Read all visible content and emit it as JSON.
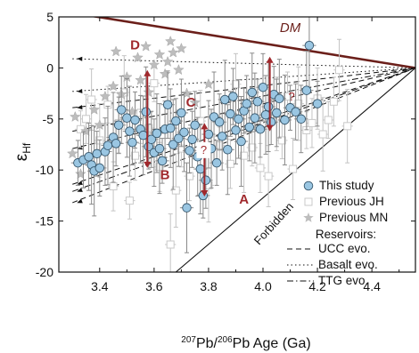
{
  "chart_data": {
    "type": "scatter",
    "title": "",
    "xlabel_iso_207": "207",
    "xlabel_mid": "Pb/",
    "xlabel_iso_206": "206",
    "xlabel_tail": "Pb Age (Ga)",
    "ylabel_main": "ε",
    "ylabel_sub": "Hf",
    "xlim": [
      3.25,
      4.56
    ],
    "ylim": [
      -20,
      5
    ],
    "x_ticks": [
      3.4,
      3.6,
      3.8,
      4.0,
      4.2,
      4.4
    ],
    "x_tick_labels": [
      "3.4",
      "3.6",
      "3.8",
      "4.0",
      "4.2",
      "4.4"
    ],
    "y_ticks": [
      5,
      0,
      -5,
      -10,
      -15,
      -20
    ],
    "y_tick_labels": [
      "5",
      "0",
      "-5",
      "-10",
      "-15",
      "-20"
    ],
    "colors": {
      "this_study_fill": "#9ac6e2",
      "this_study_edge": "#35556b",
      "previous_jh": "#c9c9c9",
      "previous_mn": "#bdbdbd",
      "error_bar": "#8a8a8a",
      "dm_line": "#6b1f1a",
      "annotation": "#a0282c"
    },
    "legend": {
      "position": "bottom-right",
      "entries": [
        "This study",
        "Previous JH",
        "Previous MN"
      ],
      "reservoirs_title": "Reservoirs:",
      "reservoir_entries": [
        "UCC evo.",
        "Basalt evo.",
        "TTG evo."
      ]
    },
    "dm_line": {
      "label": "DM",
      "points": [
        [
          3.3,
          5.4
        ],
        [
          4.56,
          0
        ]
      ]
    },
    "forbidden": {
      "label": "Forbidden",
      "points": [
        [
          3.68,
          -20
        ],
        [
          4.56,
          0
        ]
      ]
    },
    "reservoir_lines": [
      {
        "style": "dashed",
        "from": [
          3.3,
          -3.9
        ]
      },
      {
        "style": "dashed",
        "from": [
          3.3,
          -7.9
        ]
      },
      {
        "style": "dashed",
        "from": [
          3.3,
          -11.4
        ]
      },
      {
        "style": "dashed",
        "from": [
          3.3,
          -13.2
        ]
      },
      {
        "style": "dotted",
        "from": [
          3.3,
          0.9
        ]
      },
      {
        "style": "dotted",
        "from": [
          3.3,
          -2.3
        ]
      },
      {
        "style": "dashdot",
        "from": [
          3.3,
          -6.2
        ]
      },
      {
        "style": "dashdot",
        "from": [
          3.3,
          -12.1
        ]
      }
    ],
    "annotations": [
      {
        "text": "D",
        "x": 3.53,
        "y": 1.8
      },
      {
        "text": "C",
        "x": 3.735,
        "y": -3.8
      },
      {
        "text": "B",
        "x": 3.64,
        "y": -10.9
      },
      {
        "text": "A",
        "x": 3.93,
        "y": -13.3
      },
      {
        "text": "?",
        "x": 3.782,
        "y": -8.4
      },
      {
        "text": "?",
        "x": 4.105,
        "y": -3.2
      },
      {
        "text": "DM",
        "x": 4.1,
        "y": 3.5
      },
      {
        "text": "Forbidden",
        "x": 4.05,
        "y": -15.5
      }
    ],
    "arrows": [
      {
        "x": 3.575,
        "from": -0.2,
        "to": -9.8
      },
      {
        "x": 3.785,
        "from": -5.4,
        "to": -12.6
      },
      {
        "x": 4.025,
        "from": 1.1,
        "to": -6.2
      }
    ],
    "series": [
      {
        "name": "This study",
        "points": [
          [
            3.32,
            -9.3
          ],
          [
            3.34,
            -9.0
          ],
          [
            3.36,
            -8.7
          ],
          [
            3.37,
            -9.5
          ],
          [
            3.38,
            -10.1
          ],
          [
            3.39,
            -8.4
          ],
          [
            3.4,
            -9.8
          ],
          [
            3.42,
            -8.2
          ],
          [
            3.43,
            -7.6
          ],
          [
            3.45,
            -6.8
          ],
          [
            3.46,
            -7.4
          ],
          [
            3.47,
            -5.6
          ],
          [
            3.48,
            -4.1
          ],
          [
            3.5,
            -4.9
          ],
          [
            3.51,
            -6.2
          ],
          [
            3.52,
            -7.3
          ],
          [
            3.53,
            -5.1
          ],
          [
            3.55,
            -6.0
          ],
          [
            3.56,
            -6.6
          ],
          [
            3.57,
            -4.3
          ],
          [
            3.58,
            -7.7
          ],
          [
            3.59,
            -7.0
          ],
          [
            3.6,
            -8.3
          ],
          [
            3.61,
            -6.4
          ],
          [
            3.62,
            -7.9
          ],
          [
            3.63,
            -9.1
          ],
          [
            3.64,
            -6.0
          ],
          [
            3.65,
            -3.6
          ],
          [
            3.66,
            -5.9
          ],
          [
            3.67,
            -7.5
          ],
          [
            3.68,
            -5.2
          ],
          [
            3.69,
            -6.9
          ],
          [
            3.7,
            -4.4
          ],
          [
            3.71,
            -6.3
          ],
          [
            3.72,
            -13.7
          ],
          [
            3.73,
            -8.1
          ],
          [
            3.74,
            -7.0
          ],
          [
            3.75,
            -5.6
          ],
          [
            3.76,
            -8.7
          ],
          [
            3.77,
            -9.9
          ],
          [
            3.78,
            -12.5
          ],
          [
            3.79,
            -11.0
          ],
          [
            3.8,
            -6.5
          ],
          [
            3.81,
            -7.9
          ],
          [
            3.82,
            -4.8
          ],
          [
            3.83,
            -9.3
          ],
          [
            3.84,
            -5.3
          ],
          [
            3.85,
            -6.7
          ],
          [
            3.86,
            -3.1
          ],
          [
            3.87,
            -8.0
          ],
          [
            3.88,
            -4.5
          ],
          [
            3.89,
            -2.8
          ],
          [
            3.9,
            -6.1
          ],
          [
            3.91,
            -5.0
          ],
          [
            3.92,
            -7.2
          ],
          [
            3.93,
            -4.2
          ],
          [
            3.94,
            -3.5
          ],
          [
            3.95,
            -5.8
          ],
          [
            3.96,
            -2.4
          ],
          [
            3.97,
            -4.9
          ],
          [
            3.98,
            -3.3
          ],
          [
            3.99,
            -6.0
          ],
          [
            4.0,
            -1.9
          ],
          [
            4.01,
            -4.6
          ],
          [
            4.02,
            -3.8
          ],
          [
            4.03,
            -5.3
          ],
          [
            4.04,
            -2.6
          ],
          [
            4.05,
            -4.4
          ],
          [
            4.06,
            -3.0
          ],
          [
            4.08,
            -5.1
          ],
          [
            4.1,
            -3.9
          ],
          [
            4.12,
            -4.3
          ],
          [
            4.14,
            -5.0
          ],
          [
            4.16,
            -2.2
          ],
          [
            4.17,
            2.2
          ],
          [
            4.2,
            -3.5
          ]
        ]
      },
      {
        "name": "Previous JH",
        "points": [
          [
            3.33,
            -6.0
          ],
          [
            3.35,
            -5.0
          ],
          [
            3.37,
            -3.1
          ],
          [
            3.4,
            -7.1
          ],
          [
            3.43,
            -3.6
          ],
          [
            3.45,
            -11.6
          ],
          [
            3.47,
            -5.4
          ],
          [
            3.49,
            -2.4
          ],
          [
            3.51,
            -13.0
          ],
          [
            3.53,
            -8.6
          ],
          [
            3.55,
            -4.4
          ],
          [
            3.58,
            -5.9
          ],
          [
            3.6,
            -1.5
          ],
          [
            3.62,
            -9.7
          ],
          [
            3.66,
            -17.3
          ],
          [
            3.68,
            -12.0
          ],
          [
            3.7,
            -7.9
          ],
          [
            3.73,
            -10.6
          ],
          [
            3.77,
            -5.2
          ],
          [
            3.8,
            -11.5
          ],
          [
            3.84,
            -7.6
          ],
          [
            3.88,
            -9.4
          ],
          [
            3.9,
            -1.6
          ],
          [
            3.93,
            -8.6
          ],
          [
            3.96,
            -7.8
          ],
          [
            3.99,
            -9.8
          ],
          [
            4.02,
            -10.6
          ],
          [
            4.05,
            -4.5
          ],
          [
            4.07,
            -7.1
          ],
          [
            4.09,
            -2.8
          ],
          [
            4.11,
            -9.9
          ],
          [
            4.13,
            -3.5
          ],
          [
            4.16,
            -6.1
          ],
          [
            4.18,
            -5.4
          ],
          [
            4.2,
            -3.0
          ],
          [
            4.22,
            -6.5
          ],
          [
            4.24,
            -5.1
          ],
          [
            4.26,
            -3.3
          ],
          [
            4.28,
            -0.2
          ],
          [
            4.31,
            -5.7
          ]
        ]
      },
      {
        "name": "Previous MN",
        "points": [
          [
            3.3,
            -8.4
          ],
          [
            3.31,
            -4.8
          ],
          [
            3.33,
            -10.4
          ],
          [
            3.35,
            -6.2
          ],
          [
            3.38,
            -4.1
          ],
          [
            3.4,
            -5.6
          ],
          [
            3.42,
            -2.8
          ],
          [
            3.45,
            -1.8
          ],
          [
            3.46,
            1.6
          ],
          [
            3.48,
            -2.6
          ],
          [
            3.5,
            -0.9
          ],
          [
            3.52,
            -4.3
          ],
          [
            3.54,
            1.0
          ],
          [
            3.55,
            -1.2
          ],
          [
            3.57,
            2.1
          ],
          [
            3.58,
            -2.4
          ],
          [
            3.6,
            0.3
          ],
          [
            3.62,
            1.3
          ],
          [
            3.64,
            -0.6
          ],
          [
            3.65,
            0.6
          ],
          [
            3.66,
            2.6
          ],
          [
            3.67,
            1.5
          ],
          [
            3.69,
            -0.2
          ],
          [
            3.7,
            1.9
          ],
          [
            3.72,
            -2.5
          ],
          [
            3.75,
            -3.4
          ],
          [
            3.8,
            -1.6
          ]
        ]
      }
    ]
  }
}
